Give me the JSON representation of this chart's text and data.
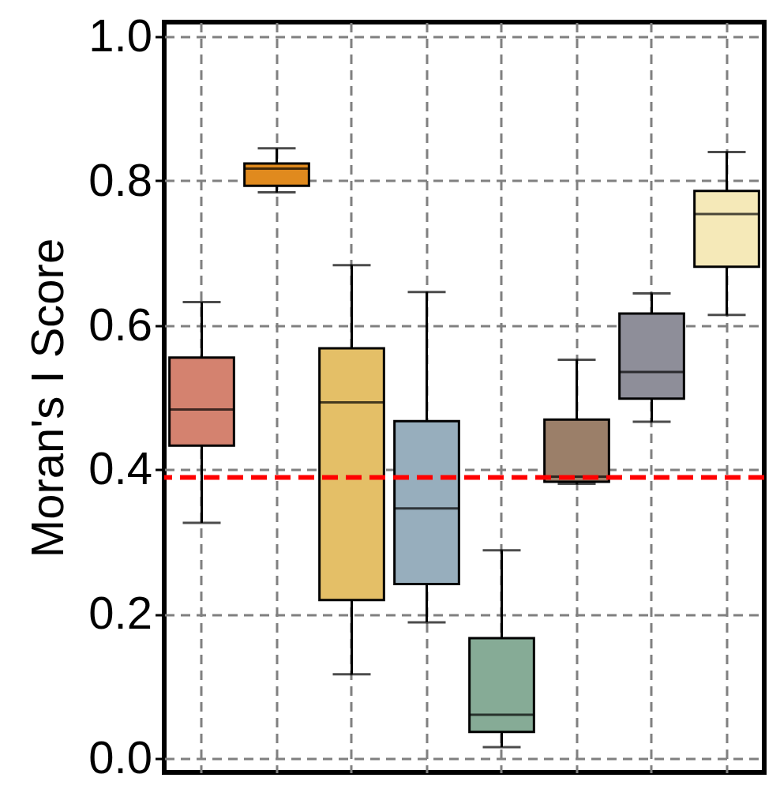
{
  "chart_data": {
    "type": "box",
    "ylabel": "Moran's I Score",
    "categories": [
      null,
      null,
      null,
      null,
      null,
      null,
      null,
      null
    ],
    "colors": [
      "#d4826f",
      "#e08a1e",
      "#e4bf67",
      "#97aebd",
      "#86ab96",
      "#9b7f69",
      "#8e8e99",
      "#f5e9b8"
    ],
    "boxes": [
      {
        "low": 0.326,
        "q1": 0.433,
        "median": 0.483,
        "q3": 0.555,
        "high": 0.632
      },
      {
        "low": 0.784,
        "q1": 0.793,
        "median": 0.817,
        "q3": 0.824,
        "high": 0.845
      },
      {
        "low": 0.116,
        "q1": 0.219,
        "median": 0.493,
        "q3": 0.568,
        "high": 0.683
      },
      {
        "low": 0.188,
        "q1": 0.241,
        "median": 0.346,
        "q3": 0.467,
        "high": 0.646
      },
      {
        "low": 0.015,
        "q1": 0.036,
        "median": 0.06,
        "q3": 0.166,
        "high": 0.288
      },
      {
        "low": 0.38,
        "q1": 0.383,
        "median": 0.39,
        "q3": 0.469,
        "high": 0.552
      },
      {
        "low": 0.466,
        "q1": 0.498,
        "median": 0.535,
        "q3": 0.616,
        "high": 0.644
      },
      {
        "low": 0.614,
        "q1": 0.681,
        "median": 0.754,
        "q3": 0.786,
        "high": 0.84
      }
    ],
    "ylim": [
      -0.02,
      1.02
    ],
    "yticks": [
      {
        "value": 0,
        "label": "0.0"
      },
      {
        "value": 0.2,
        "label": "0.2"
      },
      {
        "value": 0.4,
        "label": "0.4"
      },
      {
        "value": 0.6,
        "label": "0.6"
      },
      {
        "value": 0.8,
        "label": "0.8"
      },
      {
        "value": 1,
        "label": "1.0"
      }
    ],
    "grid": true,
    "tick_labels": "y",
    "ref_lines": [
      {
        "axis": "y",
        "value": 0.389,
        "color": "#ff0000",
        "line_style": "dashed"
      }
    ]
  }
}
